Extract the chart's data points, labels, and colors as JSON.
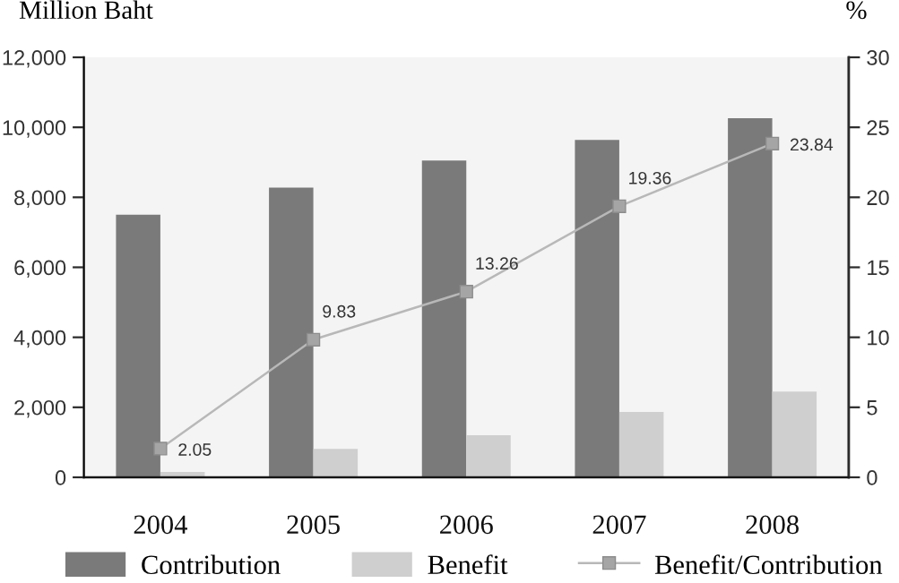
{
  "chart_data": {
    "type": "bar",
    "categories": [
      "2004",
      "2005",
      "2006",
      "2007",
      "2008"
    ],
    "ylabel": "Million Baht",
    "y2label": "%",
    "ylim": [
      0,
      12000
    ],
    "yticks": [
      0,
      {
        "value": 2000,
        "label": "2,000"
      },
      {
        "value": 4000,
        "label": "4,000"
      },
      {
        "value": 6000,
        "label": "6,000"
      },
      {
        "value": 8000,
        "label": "8,000"
      },
      {
        "value": 10000,
        "label": "10,000"
      },
      {
        "value": 12000,
        "label": "12,000"
      }
    ],
    "y2lim": [
      0,
      30
    ],
    "y2ticks": [
      0,
      5,
      10,
      15,
      20,
      25,
      30
    ],
    "series": [
      {
        "name": "Contribution",
        "color": "#7a7a7a",
        "values": [
          7500,
          8280,
          9050,
          9640,
          10260
        ]
      },
      {
        "name": "Benefit",
        "color": "#cfcfcf",
        "values": [
          150,
          810,
          1200,
          1870,
          2450
        ]
      },
      {
        "name": "Benefit/Contribution",
        "type": "line",
        "axis": "y2",
        "color": "#b8b8b8",
        "marker": "square",
        "line_style": "solid",
        "values": [
          2.05,
          9.83,
          13.26,
          19.36,
          23.84
        ],
        "value_labels": [
          "2.05",
          "9.83",
          "13.26",
          "19.36",
          "23.84"
        ]
      }
    ],
    "legend": "bottom"
  }
}
